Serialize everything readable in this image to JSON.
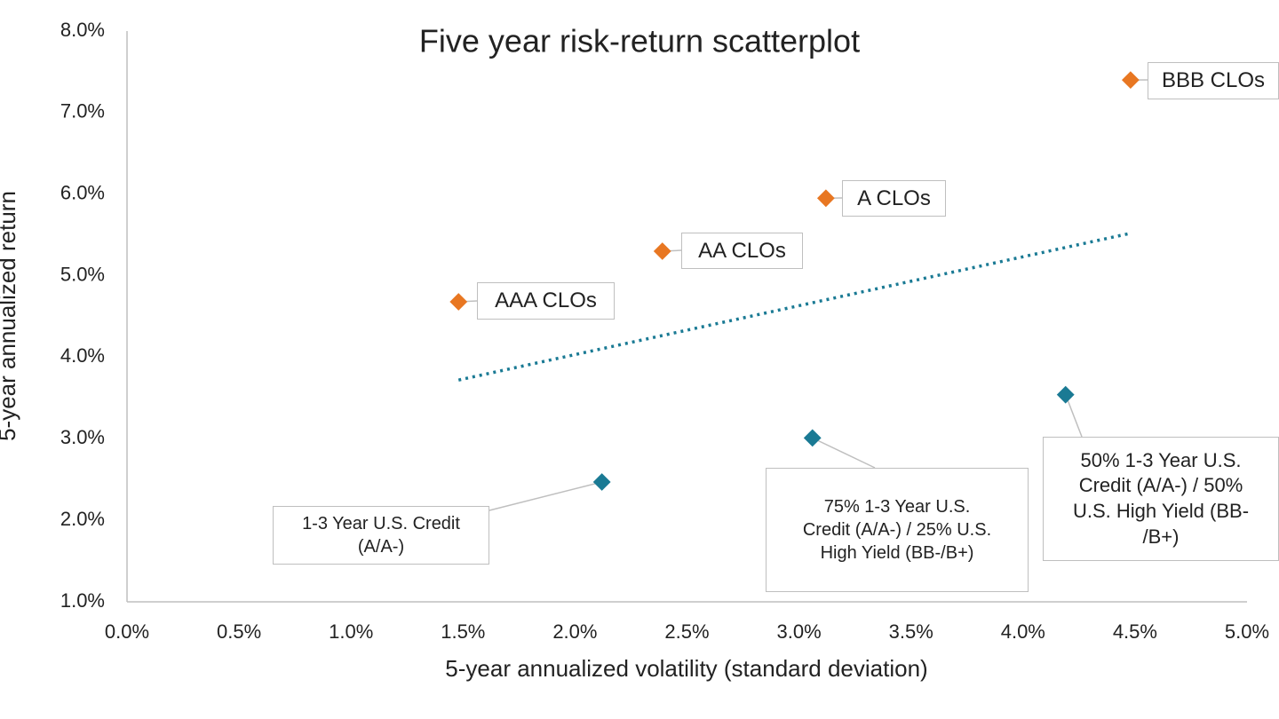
{
  "chart_data": {
    "type": "scatter",
    "title": "Five year risk-return scatterplot",
    "x_label": "5-year annualized volatility (standard deviation)",
    "y_label": "5-year annualized return",
    "xlim": [
      0,
      5
    ],
    "ylim": [
      1,
      8
    ],
    "xticks": [
      {
        "value": 0,
        "label": "0.0%"
      },
      {
        "value": 0.5,
        "label": "0.5%"
      },
      {
        "value": 1,
        "label": "1.0%"
      },
      {
        "value": 1.5,
        "label": "1.5%"
      },
      {
        "value": 2,
        "label": "2.0%"
      },
      {
        "value": 2.5,
        "label": "2.5%"
      },
      {
        "value": 3,
        "label": "3.0%"
      },
      {
        "value": 3.5,
        "label": "3.5%"
      },
      {
        "value": 4,
        "label": "4.0%"
      },
      {
        "value": 4.5,
        "label": "4.5%"
      },
      {
        "value": 5,
        "label": "5.0%"
      }
    ],
    "yticks": [
      {
        "value": 1,
        "label": "1.0%"
      },
      {
        "value": 2,
        "label": "2.0%"
      },
      {
        "value": 3,
        "label": "3.0%"
      },
      {
        "value": 4,
        "label": "4.0%"
      },
      {
        "value": 5,
        "label": "5.0%"
      },
      {
        "value": 6,
        "label": "6.0%"
      },
      {
        "value": 7,
        "label": "7.0%"
      },
      {
        "value": 8,
        "label": "8.0%"
      }
    ],
    "series": [
      {
        "color": "#e87722",
        "x": [
          1.48,
          2.39,
          3.12,
          4.48
        ],
        "values": [
          4.68,
          5.3,
          5.95,
          7.4
        ],
        "labels": [
          "AAA CLOs",
          "AA CLOs",
          "A CLOs",
          "BBB CLOs"
        ]
      },
      {
        "color": "#1a7a94",
        "x": [
          2.12,
          3.06,
          4.19
        ],
        "values": [
          2.47,
          3.01,
          3.54
        ],
        "labels": [
          "1-3 Year U.S. Credit\n(A/A-)",
          "75% 1-3 Year U.S.\nCredit (A/A-) / 25% U.S.\nHigh Yield (BB-/B+)",
          "50% 1-3 Year U.S.\nCredit (A/A-) / 50%\nU.S. High Yield (BB-\n/B+)"
        ]
      }
    ],
    "trendline": {
      "color": "#1a7a94",
      "x": [
        1.48,
        4.48
      ],
      "values": [
        3.72,
        5.52
      ]
    }
  }
}
